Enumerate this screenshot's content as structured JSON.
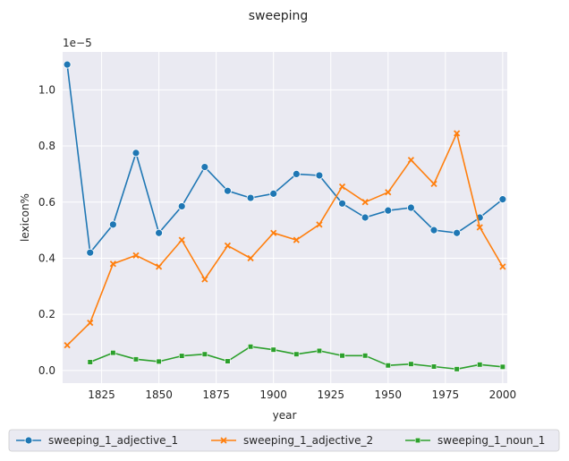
{
  "chart_data": {
    "type": "line",
    "title": "sweeping",
    "xlabel": "year",
    "ylabel": "lexicon%",
    "y_offset_label": "1e−5",
    "xlim": [
      1808,
      2002
    ],
    "ylim": [
      -0.045,
      1.135
    ],
    "xticks": [
      1825,
      1850,
      1875,
      1900,
      1925,
      1950,
      1975,
      2000
    ],
    "yticks": [
      0.0,
      0.2,
      0.4,
      0.6,
      0.8,
      1.0
    ],
    "ytick_labels": [
      "0.0",
      "0.2",
      "0.4",
      "0.6",
      "0.8",
      "1.0"
    ],
    "grid": true,
    "legend_position": "below",
    "series": [
      {
        "name": "sweeping_1_adjective_1",
        "color": "#1f77b4",
        "marker": "circle",
        "x": [
          1810,
          1820,
          1830,
          1840,
          1850,
          1860,
          1870,
          1880,
          1890,
          1900,
          1910,
          1920,
          1930,
          1940,
          1950,
          1960,
          1970,
          1980,
          1990,
          2000
        ],
        "y": [
          1.09,
          0.42,
          0.52,
          0.775,
          0.49,
          0.585,
          0.725,
          0.64,
          0.615,
          0.63,
          0.7,
          0.695,
          0.595,
          0.545,
          0.57,
          0.58,
          0.5,
          0.49,
          0.545,
          0.61
        ]
      },
      {
        "name": "sweeping_1_adjective_2",
        "color": "#ff7f0e",
        "marker": "x",
        "x": [
          1810,
          1820,
          1830,
          1840,
          1850,
          1860,
          1870,
          1880,
          1890,
          1900,
          1910,
          1920,
          1930,
          1940,
          1950,
          1960,
          1970,
          1980,
          1990,
          2000
        ],
        "y": [
          0.09,
          0.17,
          0.38,
          0.41,
          0.37,
          0.465,
          0.325,
          0.445,
          0.4,
          0.49,
          0.465,
          0.52,
          0.655,
          0.6,
          0.635,
          0.75,
          0.665,
          0.845,
          0.51,
          0.37
        ]
      },
      {
        "name": "sweeping_1_noun_1",
        "color": "#2ca02c",
        "marker": "square",
        "x": [
          1820,
          1830,
          1840,
          1850,
          1860,
          1870,
          1880,
          1890,
          1900,
          1910,
          1920,
          1930,
          1940,
          1950,
          1960,
          1970,
          1980,
          1990,
          2000
        ],
        "y": [
          0.03,
          0.063,
          0.04,
          0.032,
          0.052,
          0.058,
          0.033,
          0.085,
          0.074,
          0.058,
          0.07,
          0.053,
          0.053,
          0.018,
          0.023,
          0.014,
          0.005,
          0.021,
          0.013
        ]
      }
    ]
  }
}
